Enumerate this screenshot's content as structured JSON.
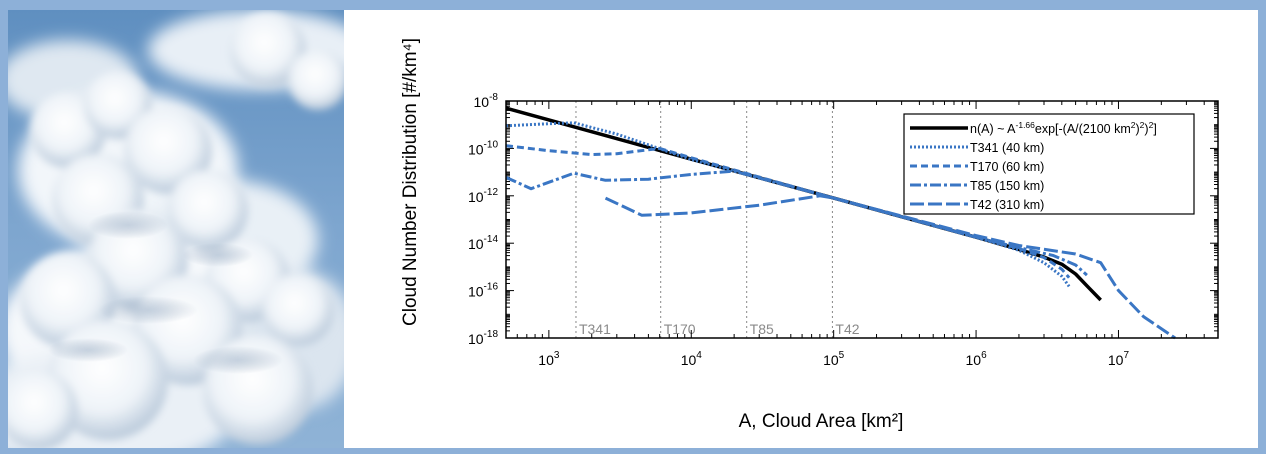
{
  "photo": {
    "subject": "cumulus clouds in blue sky"
  },
  "colors": {
    "frame": "#8db0d8",
    "model": "#3a76c4",
    "fit": "#000000",
    "grid": "#888888"
  },
  "chart_data": {
    "type": "line",
    "xlabel": "A, Cloud Area [km²]",
    "ylabel": "Cloud Number Distribution [#/km⁴]",
    "xscale": "log",
    "yscale": "log",
    "xlim": [
      500,
      50000000
    ],
    "ylim": [
      1e-18,
      1e-08
    ],
    "xticks": [
      {
        "value": 1000,
        "base": "10",
        "exp": "3"
      },
      {
        "value": 10000,
        "base": "10",
        "exp": "4"
      },
      {
        "value": 100000,
        "base": "10",
        "exp": "5"
      },
      {
        "value": 1000000,
        "base": "10",
        "exp": "6"
      },
      {
        "value": 10000000,
        "base": "10",
        "exp": "7"
      }
    ],
    "yticks": [
      {
        "value": 1e-08,
        "base": "10",
        "exp": "-8"
      },
      {
        "value": 1e-10,
        "base": "10",
        "exp": "-10"
      },
      {
        "value": 1e-12,
        "base": "10",
        "exp": "-12"
      },
      {
        "value": 1e-14,
        "base": "10",
        "exp": "-14"
      },
      {
        "value": 1e-16,
        "base": "10",
        "exp": "-16"
      },
      {
        "value": 1e-18,
        "base": "10",
        "exp": "-18"
      }
    ],
    "vlines": [
      {
        "label": "T341",
        "x": 1550
      },
      {
        "label": "T170",
        "x": 6100
      },
      {
        "label": "T85",
        "x": 24500
      },
      {
        "label": "T42",
        "x": 98000
      }
    ],
    "legend_position": "top-right",
    "series": [
      {
        "name": "n(A) ~ A^-1.66 exp[-(A/(2100 km²)²)²]",
        "legend": {
          "pre": "n(A) ~ A",
          "sup1": "-1.66",
          "mid": "exp[-(A/(2100 km",
          "sup2": "2",
          "mid2": ")",
          "sup3": "2",
          "post": ")",
          "sup4": "2",
          "end": "]"
        },
        "style": "solid",
        "color": "#000000",
        "x": [
          500,
          1000,
          10000,
          100000,
          1000000,
          2000000,
          3000000,
          4000000,
          5000000,
          6000000,
          7500000
        ],
        "y": [
          5e-09,
          1.6e-09,
          3.5e-11,
          8e-13,
          1.8e-14,
          5.5e-15,
          2.6e-15,
          1.3e-15,
          5e-16,
          1.6e-16,
          4e-17
        ]
      },
      {
        "name": "T341 (40 km)",
        "style": "dotted",
        "color": "#3a76c4",
        "x": [
          500,
          1000,
          1500,
          3000,
          10000,
          100000,
          1000000,
          2000000,
          3000000,
          4000000,
          4500000
        ],
        "y": [
          9e-10,
          1.1e-09,
          1.2e-09,
          4e-10,
          3.4e-11,
          8e-13,
          1.8e-14,
          5e-15,
          1.5e-15,
          4e-16,
          1.5e-16
        ]
      },
      {
        "name": "T170 (60 km)",
        "style": "dashed",
        "color": "#3a76c4",
        "x": [
          500,
          1000,
          2000,
          3000,
          6000,
          10000,
          100000,
          1000000,
          2000000,
          3000000,
          4000000,
          4500000
        ],
        "y": [
          1.3e-10,
          8e-11,
          5.5e-11,
          6e-11,
          1e-10,
          4e-11,
          8e-13,
          1.8e-14,
          6e-15,
          2.5e-15,
          8e-16,
          3.5e-16
        ]
      },
      {
        "name": "T85 (150 km)",
        "style": "dashdot",
        "color": "#3a76c4",
        "x": [
          500,
          750,
          1500,
          2500,
          5000,
          10000,
          20000,
          100000,
          1000000,
          2000000,
          3500000,
          5000000,
          6000000
        ],
        "y": [
          6e-12,
          2e-12,
          9e-12,
          4.5e-12,
          5e-12,
          8e-12,
          1.1e-11,
          8e-13,
          1.8e-14,
          6.5e-15,
          3e-15,
          1.2e-15,
          4.5e-16
        ]
      },
      {
        "name": "T42 (310 km)",
        "style": "longdash",
        "color": "#3a76c4",
        "x": [
          2500,
          4500,
          10000,
          30000,
          80000,
          100000,
          1000000,
          2000000,
          5000000,
          7500000,
          10000000,
          15000000,
          25000000
        ],
        "y": [
          8e-13,
          1.5e-13,
          1.9e-13,
          4e-13,
          1e-12,
          8e-13,
          2.1e-14,
          8e-15,
          3.5e-15,
          1.5e-15,
          1e-16,
          8e-18,
          1e-18
        ]
      }
    ]
  }
}
